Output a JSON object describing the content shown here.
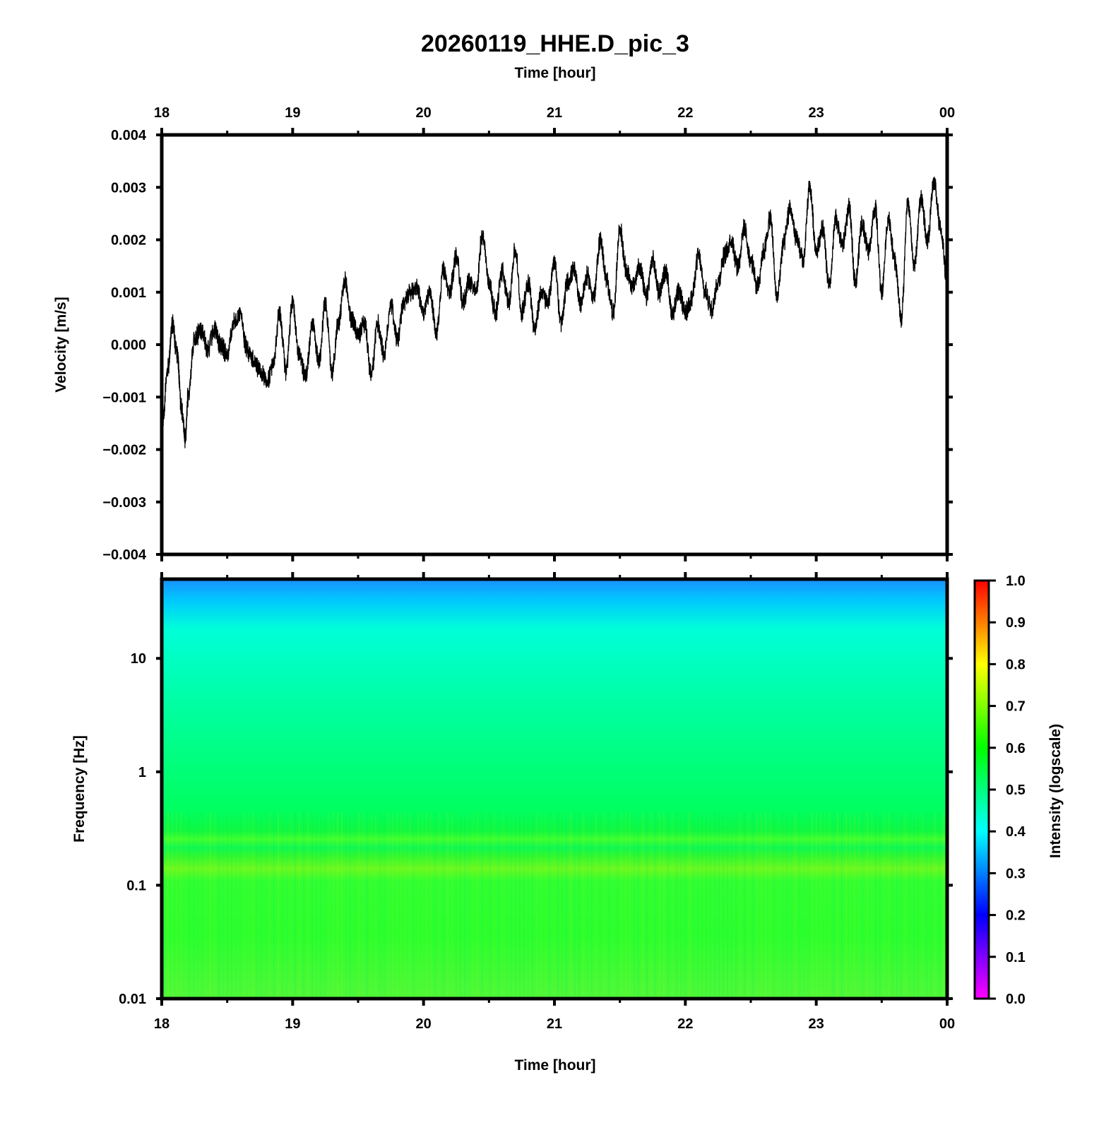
{
  "chart_data": [
    {
      "type": "line",
      "panel": "waveform",
      "title": "20260119_HHE.D_pic_3",
      "top_xlabel": "Time [hour]",
      "ylabel": "Velocity [m/s]",
      "x_ticks": [
        "18",
        "19",
        "20",
        "21",
        "22",
        "23",
        "00"
      ],
      "xlim": [
        18,
        24
      ],
      "y_ticks": [
        "0.004",
        "0.003",
        "0.002",
        "0.001",
        "0.000",
        "−0.001",
        "−0.002",
        "−0.003",
        "−0.004"
      ],
      "ylim": [
        -0.004,
        0.004
      ],
      "line_color": "#000000",
      "series": [
        {
          "x": [
            18.0,
            18.05,
            18.08,
            18.12,
            18.15,
            18.18,
            18.2,
            18.25,
            18.3,
            18.35,
            18.4,
            18.45,
            18.5,
            18.55,
            18.6,
            18.65,
            18.7,
            18.75,
            18.8,
            18.85,
            18.9,
            18.95,
            19.0,
            19.05,
            19.1,
            19.15,
            19.2,
            19.25,
            19.3,
            19.35,
            19.4,
            19.45,
            19.5,
            19.55,
            19.6,
            19.65,
            19.7,
            19.75,
            19.8,
            19.85,
            19.9,
            19.95,
            20.0,
            20.05,
            20.1,
            20.15,
            20.2,
            20.25,
            20.3,
            20.35,
            20.4,
            20.45,
            20.5,
            20.55,
            20.6,
            20.65,
            20.7,
            20.75,
            20.8,
            20.85,
            20.9,
            20.95,
            21.0,
            21.05,
            21.1,
            21.15,
            21.2,
            21.25,
            21.3,
            21.35,
            21.4,
            21.45,
            21.5,
            21.55,
            21.6,
            21.65,
            21.7,
            21.75,
            21.8,
            21.85,
            21.9,
            21.95,
            22.0,
            22.05,
            22.1,
            22.15,
            22.2,
            22.25,
            22.3,
            22.35,
            22.4,
            22.45,
            22.5,
            22.55,
            22.6,
            22.65,
            22.7,
            22.75,
            22.8,
            22.85,
            22.9,
            22.95,
            23.0,
            23.05,
            23.1,
            23.15,
            23.2,
            23.25,
            23.3,
            23.35,
            23.4,
            23.45,
            23.5,
            23.55,
            23.6,
            23.65,
            23.7,
            23.75,
            23.8,
            23.85,
            23.9,
            23.95,
            24.0
          ],
          "y": [
            -0.0016,
            -0.0004,
            0.0004,
            -0.0002,
            -0.0012,
            -0.0018,
            -0.001,
            0.0001,
            0.0003,
            -0.0001,
            0.0003,
            0.0,
            -0.0002,
            0.0004,
            0.0006,
            -0.0001,
            -0.0003,
            -0.0005,
            -0.0007,
            -0.0004,
            0.0006,
            -0.0005,
            0.0008,
            -0.0002,
            -0.0006,
            0.0004,
            -0.0003,
            0.0008,
            -0.0005,
            0.0004,
            0.0012,
            0.0005,
            0.0002,
            0.0004,
            -0.0006,
            0.0004,
            -0.0002,
            0.0008,
            0.0001,
            0.0008,
            0.001,
            0.0011,
            0.0006,
            0.001,
            0.0002,
            0.0014,
            0.001,
            0.0017,
            0.0008,
            0.0012,
            0.001,
            0.0021,
            0.0012,
            0.0006,
            0.0014,
            0.0008,
            0.0018,
            0.0006,
            0.0012,
            0.0003,
            0.001,
            0.0008,
            0.0016,
            0.0004,
            0.0012,
            0.0014,
            0.0008,
            0.0013,
            0.0009,
            0.002,
            0.0012,
            0.0006,
            0.0022,
            0.0014,
            0.0011,
            0.0015,
            0.0009,
            0.0016,
            0.001,
            0.0014,
            0.0006,
            0.001,
            0.0006,
            0.0009,
            0.0017,
            0.001,
            0.0007,
            0.0012,
            0.0017,
            0.002,
            0.0015,
            0.0022,
            0.0016,
            0.0011,
            0.0018,
            0.0024,
            0.0009,
            0.0019,
            0.0026,
            0.002,
            0.0016,
            0.003,
            0.0018,
            0.0022,
            0.0011,
            0.0024,
            0.0019,
            0.0026,
            0.0012,
            0.0023,
            0.0018,
            0.0026,
            0.001,
            0.0024,
            0.0016,
            0.0005,
            0.0027,
            0.0015,
            0.0028,
            0.002,
            0.0031,
            0.0022,
            0.0012
          ]
        }
      ]
    },
    {
      "type": "heatmap",
      "panel": "spectrogram",
      "xlabel": "Time [hour]",
      "ylabel": "Frequency [Hz]",
      "x_ticks": [
        "18",
        "19",
        "20",
        "21",
        "22",
        "23",
        "00"
      ],
      "xlim": [
        18,
        24
      ],
      "y_scale": "log",
      "y_ticks": [
        "10",
        "1",
        "0.1",
        "0.01"
      ],
      "ylim": [
        0.01,
        50
      ],
      "colorbar": {
        "label": "Intensity (logscale)",
        "ticks": [
          "1.0",
          "0.9",
          "0.8",
          "0.7",
          "0.6",
          "0.5",
          "0.4",
          "0.3",
          "0.2",
          "0.1",
          "0.0"
        ],
        "range": [
          0.0,
          1.0
        ],
        "colors": [
          "#ff00ff",
          "#0000ff",
          "#00ffff",
          "#00ff00",
          "#ffff00",
          "#ff0000"
        ]
      },
      "intensity_profile": {
        "frequency_hz": [
          0.01,
          0.03,
          0.1,
          0.2,
          0.4,
          1,
          3,
          10,
          25,
          50
        ],
        "intensity": [
          0.62,
          0.6,
          0.59,
          0.62,
          0.58,
          0.55,
          0.52,
          0.48,
          0.42,
          0.35
        ]
      }
    }
  ]
}
